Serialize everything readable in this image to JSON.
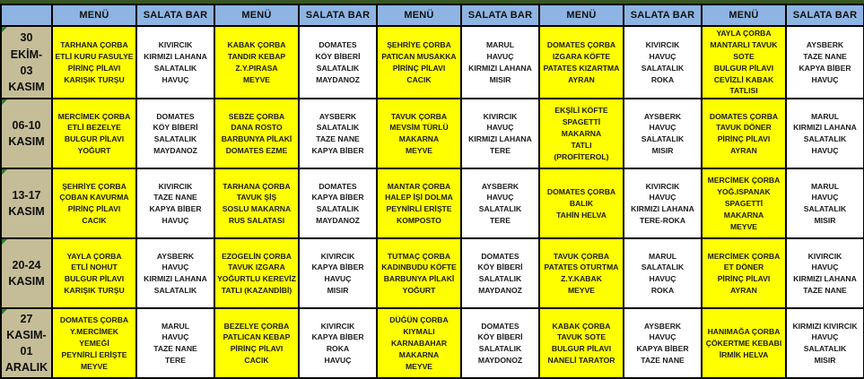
{
  "colors": {
    "header_bg": "#8DB4E2",
    "week_label_bg": "#C5BD97",
    "menu_bg": "#FFFF00",
    "salad_bg": "#FFFFFF",
    "border": "#000000",
    "top_border": "#375623",
    "error_triangle": "#2e7d32"
  },
  "table": {
    "header": [
      "",
      "MENÜ",
      "SALATA BAR",
      "MENÜ",
      "SALATA BAR",
      "MENÜ",
      "SALATA BAR",
      "MENÜ",
      "SALATA BAR",
      "MENÜ",
      "SALATA BAR"
    ],
    "rows": [
      {
        "label": "30 EKİM-\n03\nKASIM",
        "cells": [
          "TARHANA ÇORBA\nETLİ KURU FASULYE\nPİRİNÇ PİLAVI\nKARIŞIK TURŞU",
          "KIVIRCIK\nKIRMIZI LAHANA\nSALATALIK\nHAVUÇ",
          "KABAK ÇORBA\nTANDIR KEBAP\nZ.Y.PIRASA\nMEYVE",
          "DOMATES\nKÖY BİBERİ\nSALATALIK\nMAYDANOZ",
          "ŞEHRİYE ÇORBA\nPATICAN MUSAKKA\nPİRİNÇ PİLAVI\nCACIK",
          "MARUL\nHAVUÇ\nKIRMIZI LAHANA\nMISIR",
          "DOMATES ÇORBA\nIZGARA KÖFTE\nPATATES KIZARTMA\nAYRAN",
          "KIVIRCIK\nHAVUÇ\nSALATALIK\nROKA",
          "YAYLA ÇORBA\nMANTARLI TAVUK\nSOTE\nBULGUR PİLAVI\nCEVİZLİ KABAK\nTATLISI",
          "AYSBERK\nTAZE NANE\nKAPYA BİBER\nHAVUÇ"
        ]
      },
      {
        "label": "06-10\nKASIM",
        "cells": [
          "MERCİMEK ÇORBA\nETLİ BEZELYE\nBULGUR PİLAVI\nYOĞURT",
          "DOMATES\nKÖY BİBERİ\nSALATALIK\nMAYDANOZ",
          "SEBZE ÇORBA\nDANA ROSTO\nBARBUNYA PİLAKİ\nDOMATES EZME",
          "AYSBERK\nSALATALIK\nTAZE NANE\nKAPYA BİBER",
          "TAVUK ÇORBA\nMEVSİM TÜRLÜ\nMAKARNA\nMEYVE",
          "KIVIRCIK\nHAVUÇ\nKIRMIZI LAHANA\nTERE",
          "EKŞİLİ KÖFTE\nSPAGETTİ MAKARNA\nTATLI\n(PROFİTEROL)",
          "AYSBERK\nHAVUÇ\nSALATALIK\nMISIR",
          "DOMATES ÇORBA\nTAVUK DÖNER\nPİRİNÇ PİLAVI\nAYRAN",
          "MARUL\nKIRMIZI LAHANA\nSALATALIK\nHAVUÇ"
        ]
      },
      {
        "label": "13-17\nKASIM",
        "cells": [
          "ŞEHRİYE ÇORBA\nÇOBAN KAVURMA\nPİRİNÇ PİLAVI\nCACIK",
          "KIVIRCIK\nTAZE NANE\nKAPYA BİBER\nHAVUÇ",
          "TARHANA ÇORBA\nTAVUK ŞİŞ\nSOSLU MAKARNA\nRUS SALATASI",
          "DOMATES\nKAPYA BİBER\nSALATALIK\nMAYDANOZ",
          "MANTAR ÇORBA\nHALEP İŞİ DOLMA\nPEYNİRLİ ERİŞTE\nKOMPOSTO",
          "AYSBERK\nHAVUÇ\nSALATALIK\nTERE",
          "DOMATES ÇORBA\nBALIK\nTAHİN HELVA",
          "KIVIRCIK\nHAVUÇ\nKIRMIZI LAHANA\nTERE-ROKA",
          "MERCİMEK ÇORBA\nYOĞ.ISPANAK\nSPAGETTİ MAKARNA\nMEYVE",
          "MARUL\nHAVUÇ\nSALATALIK\nMISIR"
        ]
      },
      {
        "label": "20-24\nKASIM",
        "cells": [
          "YAYLA ÇORBA\nETLİ NOHUT\nBULGUR PİLAVI\nKARIŞIK TURŞU",
          "AYSBERK\nHAVUÇ\nKIRMIZI LAHANA\nSALATALIK",
          "EZOGELİN ÇORBA\nTAVUK IZGARA\nYOĞURTLU KEREVİZ\nTATLI (KAZANDİBİ)",
          "KIVIRCIK\nKAPYA BİBER\nHAVUÇ\nMISIR",
          "TUTMAÇ ÇORBA\nKADINBUDU KÖFTE\nBARBUNYA PİLAKİ\nYOĞURT",
          "DOMATES\nKÖY BİBERİ\nSALATALIK\nMAYDANOZ",
          "TAVUK ÇORBA\nPATATES OTURTMA\nZ.Y.KABAK\nMEYVE",
          "MARUL\nSALATALIK\nHAVUÇ\nROKA",
          "MERCİMEK ÇORBA\nET DÖNER\nPİRİNÇ PİLAVI\nAYRAN",
          "KIVIRCIK\nHAVUÇ\nKIRMIZI LAHANA\nTAZE NANE"
        ]
      },
      {
        "label": "27\nKASIM-\n01\nARALIK",
        "cells": [
          "DOMATES ÇORBA\nY.MERCİMEK YEMEĞİ\nPEYNİRLİ ERİŞTE\nMEYVE",
          "MARUL\nHAVUÇ\nTAZE NANE\nTERE",
          "BEZELYE ÇORBA\nPATLICAN KEBAP\nPİRİNÇ PİLAVI\nCACIK",
          "KIVIRCIK\nKAPYA BİBER\nROKA\nHAVUÇ",
          "DÜĞÜN ÇORBA\nKIYMALI\nKARNABAHAR\nMAKARNA\nMEYVE",
          "DOMATES\nKÖY BİBERİ\nSALATALIK\nMAYDONOZ",
          "KABAK ÇORBA\nTAVUK SOTE\nBULGUR PİLAVI\nNANELİ TARATOR",
          "AYSBERK\nHAVUÇ\nKAPYA BİBER\nTAZE NANE",
          "HANIMAĞA ÇORBA\nÇÖKERTME KEBABI\nİRMİK HELVA",
          "KIRMIZI KIVIRCIK\nHAVUÇ\nSALATALIK\nMISIR"
        ]
      }
    ]
  }
}
